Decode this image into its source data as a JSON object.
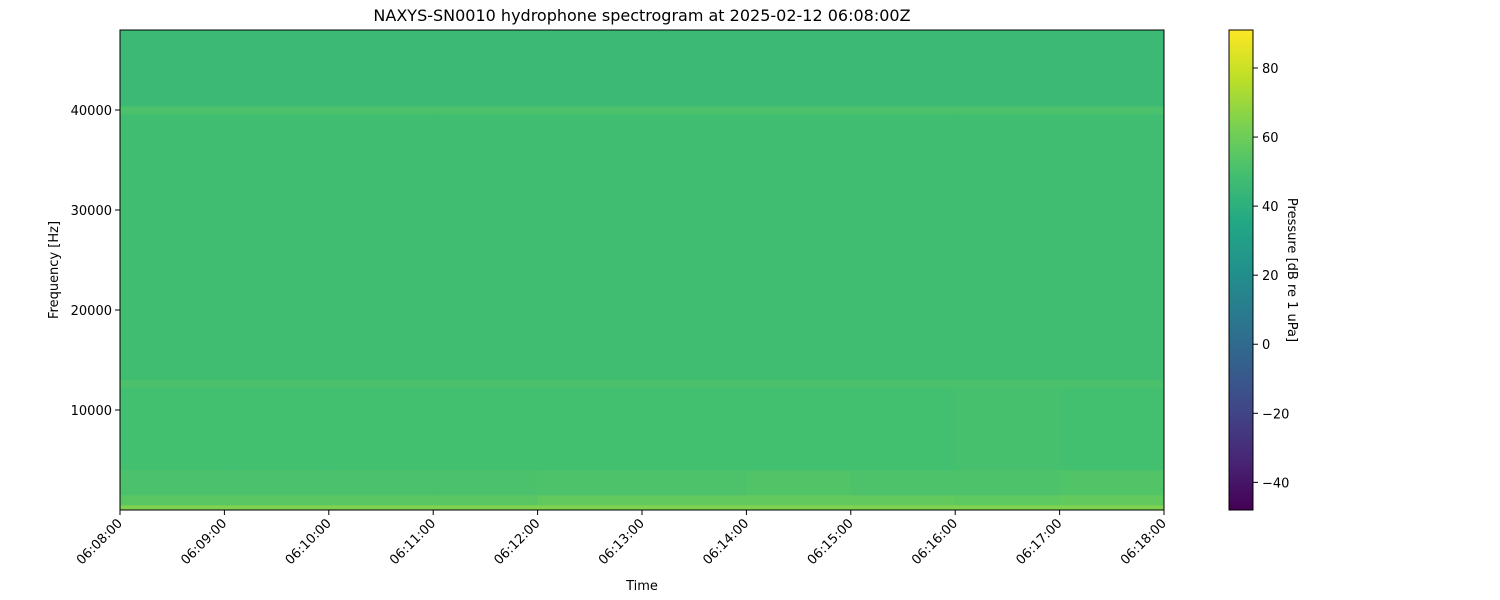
{
  "chart_data": {
    "type": "heatmap",
    "title": "NAXYS-SN0010 hydrophone spectrogram at 2025-02-12 06:08:00Z",
    "xlabel": "Time",
    "ylabel": "Frequency [Hz]",
    "colorbar_label": "Pressure [dB re 1 uPa]",
    "colormap": "viridis",
    "clim": [
      -48,
      91
    ],
    "colorbar_ticks": [
      -40,
      -20,
      0,
      20,
      40,
      60,
      80
    ],
    "x_ticks": [
      "06:08:00",
      "06:09:00",
      "06:10:00",
      "06:11:00",
      "06:12:00",
      "06:13:00",
      "06:14:00",
      "06:15:00",
      "06:16:00",
      "06:17:00",
      "06:18:00"
    ],
    "y_ticks": [
      10000,
      20000,
      30000,
      40000
    ],
    "ylim": [
      0,
      48000
    ],
    "grid": false,
    "time_bins": [
      "06:08",
      "06:09",
      "06:10",
      "06:11",
      "06:12",
      "06:13",
      "06:14",
      "06:15",
      "06:16",
      "06:17"
    ],
    "frequency_bands_hz": [
      [
        0,
        500
      ],
      [
        500,
        1500
      ],
      [
        1500,
        4000
      ],
      [
        4000,
        12300
      ],
      [
        12300,
        13000
      ],
      [
        13000,
        39600
      ],
      [
        39600,
        40400
      ],
      [
        40400,
        48000
      ]
    ],
    "values_db": [
      [
        64,
        64,
        64,
        64,
        64,
        64,
        64,
        64,
        64,
        64
      ],
      [
        55,
        55,
        55,
        55,
        57,
        57,
        57,
        57,
        56,
        57
      ],
      [
        51,
        51,
        51,
        51,
        52,
        52,
        53,
        52,
        52,
        53
      ],
      [
        49,
        49,
        49,
        49,
        49,
        49,
        49,
        49,
        50,
        49
      ],
      [
        51,
        51,
        51,
        51,
        51,
        51,
        51,
        51,
        51,
        51
      ],
      [
        48,
        48,
        48,
        48,
        48,
        48,
        48,
        48,
        48,
        48
      ],
      [
        51,
        51,
        51,
        51,
        51,
        51,
        51,
        51,
        51,
        51
      ],
      [
        46,
        46,
        46,
        46,
        46,
        46,
        46,
        46,
        46,
        46
      ]
    ]
  }
}
